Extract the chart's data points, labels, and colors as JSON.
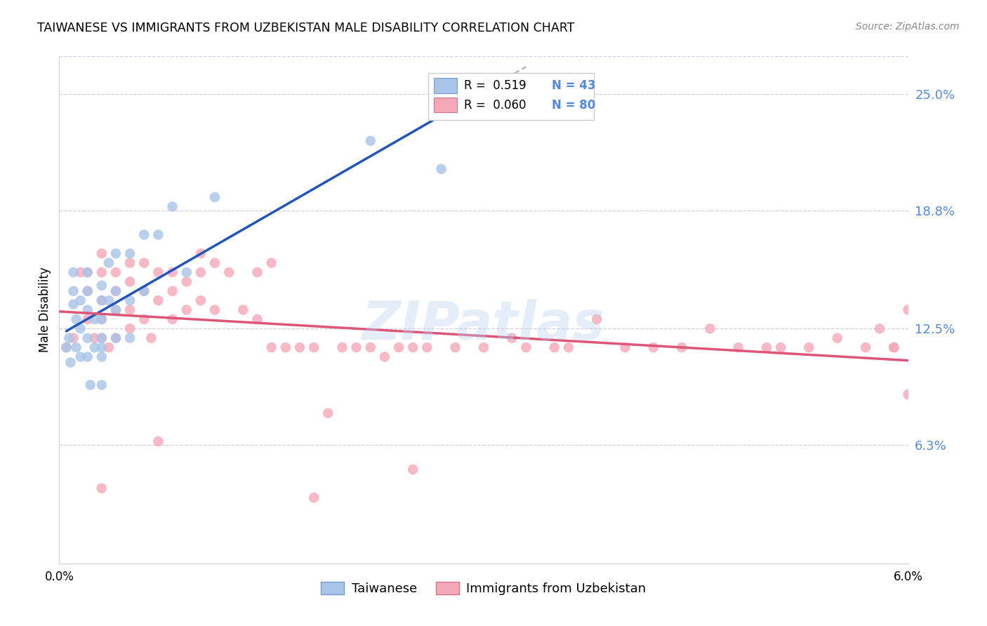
{
  "title": "TAIWANESE VS IMMIGRANTS FROM UZBEKISTAN MALE DISABILITY CORRELATION CHART",
  "source": "Source: ZipAtlas.com",
  "ylabel": "Male Disability",
  "ytick_labels": [
    "25.0%",
    "18.8%",
    "12.5%",
    "6.3%"
  ],
  "ytick_values": [
    0.25,
    0.188,
    0.125,
    0.063
  ],
  "xmin": 0.0,
  "xmax": 0.06,
  "ymin": 0.0,
  "ymax": 0.27,
  "legend_blue_r": "R =  0.519",
  "legend_blue_n": "N = 43",
  "legend_pink_r": "R =  0.060",
  "legend_pink_n": "N = 80",
  "legend_label_blue": "Taiwanese",
  "legend_label_pink": "Immigrants from Uzbekistan",
  "watermark": "ZIPatlas",
  "blue_color": "#a8c4e8",
  "pink_color": "#f5a8b8",
  "blue_line_color": "#2255bb",
  "pink_line_color": "#dd5577",
  "dashed_line_color": "#bbbbbb",
  "right_axis_color": "#5588dd",
  "grid_color": "#d0d0e0",
  "taiwanese_x": [
    0.0005,
    0.0007,
    0.0008,
    0.001,
    0.001,
    0.001,
    0.0012,
    0.0012,
    0.0015,
    0.0015,
    0.0015,
    0.002,
    0.002,
    0.002,
    0.002,
    0.002,
    0.0022,
    0.0025,
    0.0025,
    0.003,
    0.003,
    0.003,
    0.003,
    0.003,
    0.003,
    0.003,
    0.0035,
    0.0035,
    0.004,
    0.004,
    0.004,
    0.004,
    0.005,
    0.005,
    0.005,
    0.006,
    0.006,
    0.007,
    0.008,
    0.009,
    0.011,
    0.022,
    0.027
  ],
  "taiwanese_y": [
    0.115,
    0.12,
    0.107,
    0.138,
    0.145,
    0.155,
    0.13,
    0.115,
    0.125,
    0.14,
    0.11,
    0.155,
    0.145,
    0.135,
    0.12,
    0.11,
    0.095,
    0.13,
    0.115,
    0.148,
    0.14,
    0.13,
    0.12,
    0.115,
    0.11,
    0.095,
    0.16,
    0.14,
    0.165,
    0.145,
    0.135,
    0.12,
    0.165,
    0.14,
    0.12,
    0.175,
    0.145,
    0.175,
    0.19,
    0.155,
    0.195,
    0.225,
    0.21
  ],
  "uzbekistan_x": [
    0.0005,
    0.001,
    0.0015,
    0.002,
    0.002,
    0.002,
    0.0025,
    0.003,
    0.003,
    0.003,
    0.003,
    0.003,
    0.0035,
    0.004,
    0.004,
    0.004,
    0.004,
    0.005,
    0.005,
    0.005,
    0.005,
    0.006,
    0.006,
    0.006,
    0.0065,
    0.007,
    0.007,
    0.008,
    0.008,
    0.008,
    0.009,
    0.009,
    0.01,
    0.01,
    0.01,
    0.011,
    0.011,
    0.012,
    0.013,
    0.014,
    0.014,
    0.015,
    0.015,
    0.016,
    0.017,
    0.018,
    0.019,
    0.02,
    0.021,
    0.022,
    0.023,
    0.024,
    0.025,
    0.026,
    0.028,
    0.03,
    0.032,
    0.033,
    0.035,
    0.036,
    0.038,
    0.04,
    0.042,
    0.044,
    0.046,
    0.048,
    0.05,
    0.051,
    0.053,
    0.055,
    0.057,
    0.058,
    0.059,
    0.059,
    0.06,
    0.06,
    0.003,
    0.007,
    0.018,
    0.025
  ],
  "uzbekistan_y": [
    0.115,
    0.12,
    0.155,
    0.155,
    0.145,
    0.13,
    0.12,
    0.165,
    0.155,
    0.14,
    0.13,
    0.12,
    0.115,
    0.155,
    0.145,
    0.135,
    0.12,
    0.16,
    0.15,
    0.135,
    0.125,
    0.16,
    0.145,
    0.13,
    0.12,
    0.155,
    0.14,
    0.155,
    0.145,
    0.13,
    0.15,
    0.135,
    0.165,
    0.155,
    0.14,
    0.16,
    0.135,
    0.155,
    0.135,
    0.155,
    0.13,
    0.16,
    0.115,
    0.115,
    0.115,
    0.115,
    0.08,
    0.115,
    0.115,
    0.115,
    0.11,
    0.115,
    0.115,
    0.115,
    0.115,
    0.115,
    0.12,
    0.115,
    0.115,
    0.115,
    0.13,
    0.115,
    0.115,
    0.115,
    0.125,
    0.115,
    0.115,
    0.115,
    0.115,
    0.12,
    0.115,
    0.125,
    0.115,
    0.115,
    0.135,
    0.09,
    0.04,
    0.065,
    0.035,
    0.05
  ]
}
